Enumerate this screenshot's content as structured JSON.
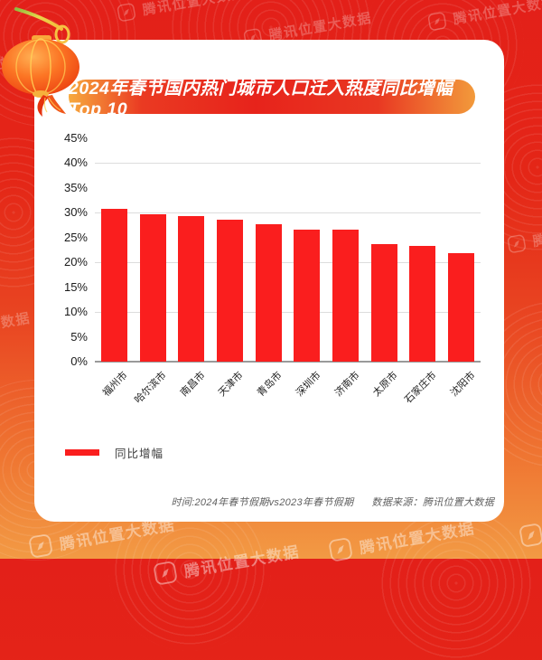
{
  "background": {
    "watermark_text": "腾讯位置大数据",
    "watermark_icon": "compass-icon"
  },
  "header": {
    "title": "2024年春节国内热门城市人口迁入热度同比增幅Top 10",
    "decoration": "red-lantern"
  },
  "chart_data": {
    "type": "bar",
    "title": "2024年春节国内热门城市人口迁入热度同比增幅Top 10",
    "categories": [
      "福州市",
      "哈尔滨市",
      "南昌市",
      "天津市",
      "青岛市",
      "深圳市",
      "济南市",
      "太原市",
      "石家庄市",
      "沈阳市"
    ],
    "series": [
      {
        "name": "同比增幅",
        "values": [
          30.7,
          29.7,
          29.2,
          28.5,
          27.6,
          26.6,
          26.5,
          23.7,
          23.2,
          21.9
        ]
      }
    ],
    "xlabel": "",
    "ylabel": "",
    "ylim": [
      0,
      45
    ],
    "yticks": [
      {
        "v": 0,
        "label": "0%"
      },
      {
        "v": 5,
        "label": "5%"
      },
      {
        "v": 10,
        "label": "10%"
      },
      {
        "v": 15,
        "label": "15%"
      },
      {
        "v": 20,
        "label": "20%"
      },
      {
        "v": 25,
        "label": "25%"
      },
      {
        "v": 30,
        "label": "30%"
      },
      {
        "v": 35,
        "label": "35%"
      },
      {
        "v": 40,
        "label": "40%"
      },
      {
        "v": 45,
        "label": "45%"
      }
    ],
    "grid_values": [
      10,
      20,
      30,
      40
    ],
    "grid": true,
    "legend_position": "bottom-left",
    "bar_color": "#fa1e1e"
  },
  "legend": {
    "items": [
      {
        "label": "同比增幅",
        "color": "#fa1e1e"
      }
    ]
  },
  "footer": {
    "time_note": "时间:2024年春节假期vs2023年春节假期",
    "source_note": "数据来源：腾讯位置大数据"
  },
  "colors": {
    "background_top": "#e32019",
    "background_bottom": "#f29a44",
    "card": "#ffffff",
    "accent_red": "#fa1e1e",
    "grid": "#dcdcdc",
    "axis": "#9a9a9a",
    "text_dark": "#1a1a1a",
    "footer_text": "#606060"
  }
}
